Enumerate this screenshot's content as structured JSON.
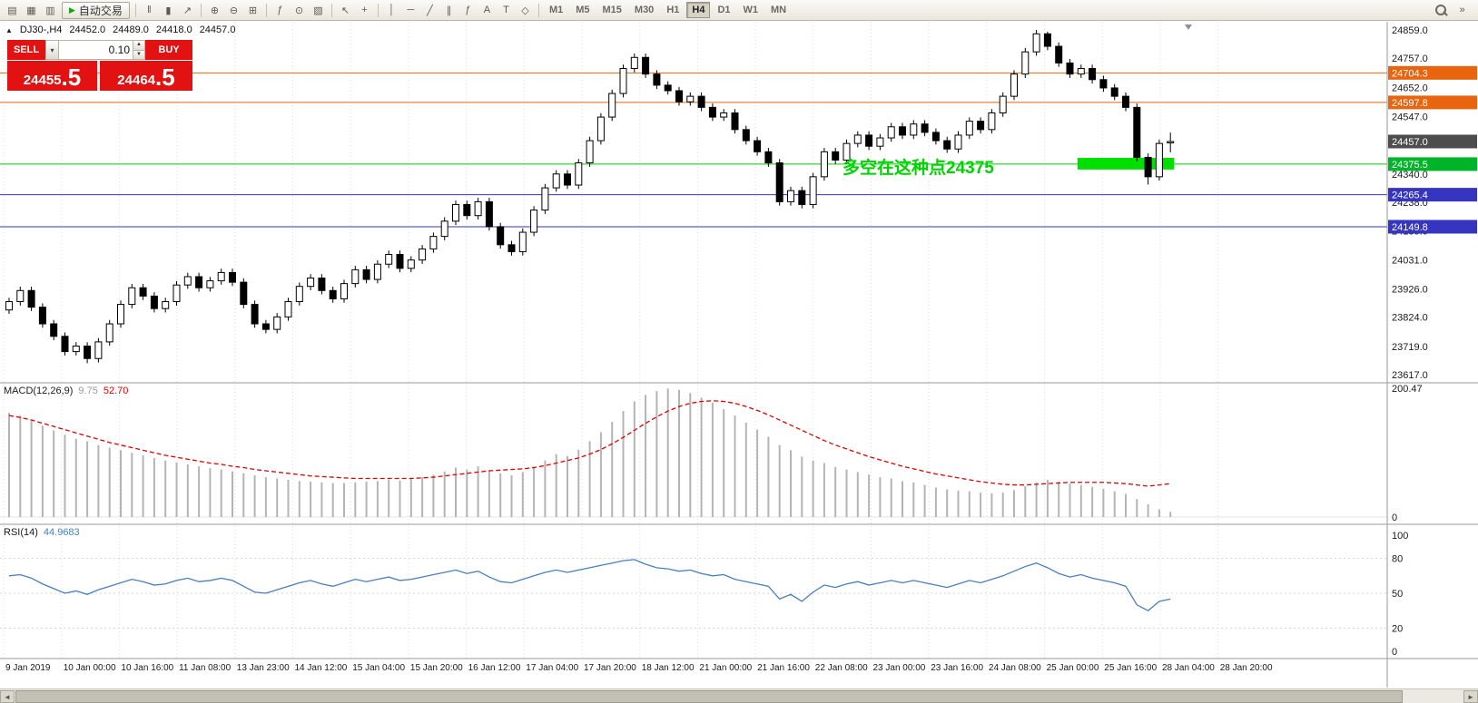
{
  "toolbar": {
    "autotrading": {
      "label": "自动交易",
      "play_glyph": "▶"
    },
    "icons": [
      {
        "name": "new-order-icon",
        "glyph": "▤"
      },
      {
        "name": "chart-window-icon",
        "glyph": "▦"
      },
      {
        "name": "market-watch-icon",
        "glyph": "▥"
      },
      {
        "name": "bar-chart-icon",
        "glyph": "‖"
      },
      {
        "name": "candlestick-chart-icon",
        "glyph": "▮"
      },
      {
        "name": "line-chart-icon",
        "glyph": "↗"
      },
      {
        "name": "zoom-in-icon",
        "glyph": "⊕"
      },
      {
        "name": "zoom-out-icon",
        "glyph": "⊖"
      },
      {
        "name": "tile-windows-icon",
        "glyph": "⊞"
      },
      {
        "name": "indicators-icon",
        "glyph": "ƒ"
      },
      {
        "name": "periods-icon",
        "glyph": "⊙"
      },
      {
        "name": "templates-icon",
        "glyph": "▧"
      },
      {
        "name": "cursor-icon",
        "glyph": "↖"
      },
      {
        "name": "crosshair-icon",
        "glyph": "+"
      },
      {
        "name": "vertical-line-icon",
        "glyph": "│"
      },
      {
        "name": "horizontal-line-icon",
        "glyph": "─"
      },
      {
        "name": "trendline-icon",
        "glyph": "╱"
      },
      {
        "name": "channel-icon",
        "glyph": "∥"
      },
      {
        "name": "fibonacci-icon",
        "glyph": "ƒ"
      },
      {
        "name": "text-icon",
        "glyph": "A"
      },
      {
        "name": "label-icon",
        "glyph": "T"
      },
      {
        "name": "arrows-icon",
        "glyph": "◇"
      },
      {
        "name": "overflow-icon",
        "glyph": "»"
      }
    ],
    "timeframes": [
      "M1",
      "M5",
      "M15",
      "M30",
      "H1",
      "H4",
      "D1",
      "W1",
      "MN"
    ],
    "active_timeframe": "H4"
  },
  "chart_header": {
    "toggle_glyph": "▲",
    "symbol_period": "DJ30-,H4",
    "open": "24452.0",
    "high": "24489.0",
    "low": "24418.0",
    "close": "24457.0"
  },
  "trade_panel": {
    "sell_label": "SELL",
    "buy_label": "BUY",
    "volume": "0.10",
    "volume_dropdown_glyph": "▾",
    "spin_up_glyph": "▲",
    "spin_down_glyph": "▼",
    "sell_price_main": "24455",
    "sell_price_pips": ".5",
    "buy_price_main": "24464",
    "buy_price_pips": ".5"
  },
  "scrollbar": {
    "left_glyph": "◄",
    "right_glyph": "►"
  },
  "chart_data": {
    "type": "candlestick",
    "symbol": "DJ30-",
    "timeframe": "H4",
    "price_range_top": 24859.0,
    "price_range_bottom": 23617.0,
    "candles": [
      [
        23850,
        23894,
        23836,
        23880
      ],
      [
        23880,
        23934,
        23866,
        23920
      ],
      [
        23920,
        23934,
        23846,
        23860
      ],
      [
        23860,
        23874,
        23786,
        23800
      ],
      [
        23800,
        23814,
        23741,
        23755
      ],
      [
        23755,
        23769,
        23686,
        23700
      ],
      [
        23700,
        23734,
        23686,
        23720
      ],
      [
        23720,
        23734,
        23658,
        23675
      ],
      [
        23675,
        23749,
        23661,
        23735
      ],
      [
        23735,
        23814,
        23721,
        23800
      ],
      [
        23800,
        23884,
        23786,
        23870
      ],
      [
        23870,
        23944,
        23856,
        23930
      ],
      [
        23930,
        23944,
        23886,
        23900
      ],
      [
        23900,
        23914,
        23841,
        23855
      ],
      [
        23855,
        23894,
        23841,
        23880
      ],
      [
        23880,
        23954,
        23866,
        23940
      ],
      [
        23940,
        23984,
        23926,
        23970
      ],
      [
        23970,
        23984,
        23916,
        23930
      ],
      [
        23930,
        23969,
        23916,
        23955
      ],
      [
        23955,
        23999,
        23941,
        23985
      ],
      [
        23985,
        23999,
        23936,
        23950
      ],
      [
        23950,
        23964,
        23856,
        23870
      ],
      [
        23870,
        23884,
        23786,
        23800
      ],
      [
        23800,
        23814,
        23766,
        23780
      ],
      [
        23780,
        23839,
        23766,
        23825
      ],
      [
        23825,
        23894,
        23811,
        23880
      ],
      [
        23880,
        23949,
        23866,
        23935
      ],
      [
        23935,
        23979,
        23921,
        23965
      ],
      [
        23965,
        23979,
        23906,
        23920
      ],
      [
        23920,
        23934,
        23876,
        23890
      ],
      [
        23890,
        23959,
        23876,
        23945
      ],
      [
        23945,
        24009,
        23931,
        23995
      ],
      [
        23995,
        24009,
        23946,
        23960
      ],
      [
        23960,
        24029,
        23946,
        24015
      ],
      [
        24015,
        24064,
        24001,
        24050
      ],
      [
        24050,
        24064,
        23986,
        24000
      ],
      [
        24000,
        24044,
        23986,
        24030
      ],
      [
        24030,
        24084,
        24016,
        24070
      ],
      [
        24070,
        24129,
        24056,
        24115
      ],
      [
        24115,
        24184,
        24101,
        24170
      ],
      [
        24170,
        24244,
        24156,
        24230
      ],
      [
        24230,
        24244,
        24176,
        24190
      ],
      [
        24190,
        24254,
        24176,
        24240
      ],
      [
        24240,
        24254,
        24136,
        24150
      ],
      [
        24150,
        24164,
        24071,
        24085
      ],
      [
        24085,
        24099,
        24046,
        24060
      ],
      [
        24060,
        24144,
        24046,
        24130
      ],
      [
        24130,
        24224,
        24116,
        24210
      ],
      [
        24210,
        24304,
        24196,
        24290
      ],
      [
        24290,
        24354,
        24276,
        24340
      ],
      [
        24340,
        24354,
        24286,
        24300
      ],
      [
        24300,
        24394,
        24286,
        24380
      ],
      [
        24380,
        24474,
        24366,
        24460
      ],
      [
        24460,
        24559,
        24446,
        24545
      ],
      [
        24545,
        24644,
        24531,
        24630
      ],
      [
        24630,
        24734,
        24616,
        24720
      ],
      [
        24720,
        24774,
        24706,
        24760
      ],
      [
        24760,
        24774,
        24686,
        24700
      ],
      [
        24700,
        24714,
        24646,
        24660
      ],
      [
        24660,
        24674,
        24626,
        24640
      ],
      [
        24640,
        24654,
        24586,
        24600
      ],
      [
        24600,
        24634,
        24586,
        24620
      ],
      [
        24620,
        24634,
        24566,
        24580
      ],
      [
        24580,
        24594,
        24531,
        24545
      ],
      [
        24545,
        24574,
        24531,
        24560
      ],
      [
        24560,
        24574,
        24486,
        24500
      ],
      [
        24500,
        24514,
        24446,
        24460
      ],
      [
        24460,
        24474,
        24406,
        24420
      ],
      [
        24420,
        24434,
        24366,
        24380
      ],
      [
        24380,
        24394,
        24226,
        24240
      ],
      [
        24240,
        24294,
        24226,
        24280
      ],
      [
        24280,
        24294,
        24216,
        24230
      ],
      [
        24230,
        24344,
        24216,
        24330
      ],
      [
        24330,
        24434,
        24316,
        24420
      ],
      [
        24420,
        24434,
        24376,
        24390
      ],
      [
        24390,
        24464,
        24376,
        24450
      ],
      [
        24450,
        24494,
        24436,
        24480
      ],
      [
        24480,
        24494,
        24426,
        24440
      ],
      [
        24440,
        24484,
        24426,
        24470
      ],
      [
        24470,
        24524,
        24456,
        24510
      ],
      [
        24510,
        24524,
        24466,
        24480
      ],
      [
        24480,
        24534,
        24466,
        24520
      ],
      [
        24520,
        24534,
        24476,
        24490
      ],
      [
        24490,
        24504,
        24446,
        24460
      ],
      [
        24460,
        24474,
        24416,
        24430
      ],
      [
        24430,
        24494,
        24416,
        24480
      ],
      [
        24480,
        24544,
        24466,
        24530
      ],
      [
        24530,
        24544,
        24486,
        24500
      ],
      [
        24500,
        24574,
        24486,
        24560
      ],
      [
        24560,
        24634,
        24546,
        24620
      ],
      [
        24620,
        24714,
        24606,
        24700
      ],
      [
        24700,
        24794,
        24686,
        24780
      ],
      [
        24780,
        24859,
        24766,
        24845
      ],
      [
        24845,
        24853,
        24786,
        24800
      ],
      [
        24800,
        24814,
        24726,
        24740
      ],
      [
        24740,
        24754,
        24686,
        24700
      ],
      [
        24700,
        24734,
        24686,
        24720
      ],
      [
        24720,
        24734,
        24666,
        24680
      ],
      [
        24680,
        24694,
        24636,
        24650
      ],
      [
        24650,
        24664,
        24606,
        24620
      ],
      [
        24620,
        24634,
        24566,
        24580
      ],
      [
        24580,
        24594,
        24386,
        24400
      ],
      [
        24400,
        24414,
        24302,
        24330
      ],
      [
        24330,
        24464,
        24316,
        24450
      ],
      [
        24452,
        24489,
        24418,
        24457
      ]
    ],
    "hlines": [
      {
        "price": 24704.3,
        "color": "#e8640f",
        "width": 1
      },
      {
        "price": 24597.8,
        "color": "#e8640f",
        "width": 1
      },
      {
        "price": 24375.5,
        "color": "#00cc00",
        "width": 1
      },
      {
        "price": 24265.4,
        "color": "#3535c0",
        "width": 1
      },
      {
        "price": 24149.8,
        "color": "#3535c0",
        "width": 1
      }
    ],
    "annotations": {
      "label": {
        "text": "多空在这种点24375",
        "color": "#00d400"
      },
      "rectangle": {
        "from_index": 96,
        "to_index": 104,
        "price_top": 24398,
        "price_bottom": 24356,
        "color": "#00e000"
      }
    },
    "price_axis": {
      "ticks": [
        "24859.0",
        "24757.0",
        "24652.0",
        "24547.0",
        "24340.0",
        "24238.0",
        "24135.0",
        "24031.0",
        "23926.0",
        "23824.0",
        "23719.0",
        "23617.0"
      ],
      "badges": [
        {
          "value": "24704.3",
          "color": "#e8640f"
        },
        {
          "value": "24597.8",
          "color": "#e8640f"
        },
        {
          "value": "24457.0",
          "color": "#4d4d4d"
        },
        {
          "value": "24375.5",
          "color": "#00b42a"
        },
        {
          "value": "24265.4",
          "color": "#3535c0"
        },
        {
          "value": "24149.8",
          "color": "#3535c0"
        }
      ]
    },
    "time_axis": {
      "labels": [
        "9 Jan 2019",
        "10 Jan 00:00",
        "10 Jan 16:00",
        "11 Jan 08:00",
        "13 Jan 23:00",
        "14 Jan 12:00",
        "15 Jan 04:00",
        "15 Jan 20:00",
        "16 Jan 12:00",
        "17 Jan 04:00",
        "17 Jan 20:00",
        "18 Jan 12:00",
        "21 Jan 00:00",
        "21 Jan 16:00",
        "22 Jan 08:00",
        "23 Jan 00:00",
        "23 Jan 16:00",
        "24 Jan 08:00",
        "25 Jan 00:00",
        "25 Jan 16:00",
        "28 Jan 04:00",
        "28 Jan 20:00"
      ]
    },
    "macd": {
      "label": "MACD(12,26,9)",
      "value_main": "9.75",
      "value_signal": "52.70",
      "scale": [
        "200.47",
        "0"
      ],
      "histogram_color": "#b4b4b4",
      "signal_color": "#e00000",
      "histogram": [
        162,
        158,
        150,
        142,
        135,
        128,
        122,
        118,
        112,
        108,
        104,
        100,
        96,
        92,
        88,
        85,
        82,
        79,
        76,
        74,
        71,
        68,
        65,
        62,
        60,
        58,
        56,
        55,
        54,
        53,
        53,
        54,
        55,
        56,
        58,
        57,
        59,
        62,
        66,
        71,
        77,
        74,
        79,
        73,
        68,
        65,
        70,
        78,
        88,
        98,
        95,
        105,
        118,
        132,
        148,
        165,
        180,
        190,
        196,
        200,
        198,
        193,
        186,
        178,
        168,
        158,
        147,
        136,
        125,
        112,
        104,
        94,
        88,
        84,
        78,
        74,
        70,
        66,
        62,
        60,
        56,
        54,
        50,
        46,
        43,
        41,
        40,
        38,
        37,
        38,
        42,
        48,
        54,
        58,
        55,
        52,
        50,
        47,
        44,
        40,
        36,
        28,
        20,
        12,
        8
      ],
      "signal": [
        158,
        155,
        151,
        146,
        141,
        136,
        131,
        126,
        121,
        116,
        112,
        108,
        104,
        100,
        96,
        93,
        90,
        87,
        84,
        82,
        79,
        77,
        74,
        72,
        70,
        68,
        66,
        64,
        63,
        62,
        61,
        60,
        60,
        60,
        60,
        60,
        60,
        61,
        62,
        64,
        66,
        68,
        70,
        72,
        73,
        74,
        75,
        77,
        80,
        84,
        88,
        92,
        98,
        105,
        114,
        124,
        135,
        146,
        156,
        165,
        172,
        177,
        180,
        181,
        180,
        177,
        172,
        166,
        159,
        151,
        143,
        135,
        127,
        119,
        112,
        106,
        100,
        94,
        89,
        84,
        79,
        75,
        71,
        67,
        64,
        61,
        58,
        55,
        53,
        51,
        50,
        50,
        51,
        52,
        53,
        54,
        54,
        54,
        54,
        53,
        52,
        50,
        48,
        50,
        52
      ]
    },
    "rsi": {
      "label": "RSI(14)",
      "value": "44.9683",
      "ticks": [
        "100",
        "80",
        "50",
        "20",
        "0"
      ],
      "levels": [
        80,
        50,
        20
      ],
      "line_color": "#4a7ebb",
      "values": [
        65,
        66,
        63,
        58,
        54,
        50,
        52,
        49,
        53,
        56,
        59,
        62,
        60,
        57,
        58,
        61,
        63,
        60,
        61,
        63,
        61,
        56,
        51,
        50,
        53,
        56,
        59,
        61,
        58,
        56,
        59,
        62,
        60,
        62,
        64,
        61,
        62,
        64,
        66,
        68,
        70,
        67,
        69,
        64,
        60,
        59,
        62,
        65,
        68,
        70,
        68,
        70,
        72,
        74,
        76,
        78,
        79,
        75,
        72,
        71,
        69,
        70,
        67,
        65,
        66,
        62,
        60,
        58,
        56,
        45,
        49,
        43,
        51,
        57,
        55,
        58,
        60,
        57,
        59,
        61,
        59,
        61,
        59,
        57,
        55,
        58,
        61,
        59,
        62,
        65,
        69,
        73,
        76,
        72,
        67,
        64,
        66,
        63,
        61,
        59,
        56,
        40,
        35,
        43,
        45
      ]
    }
  }
}
